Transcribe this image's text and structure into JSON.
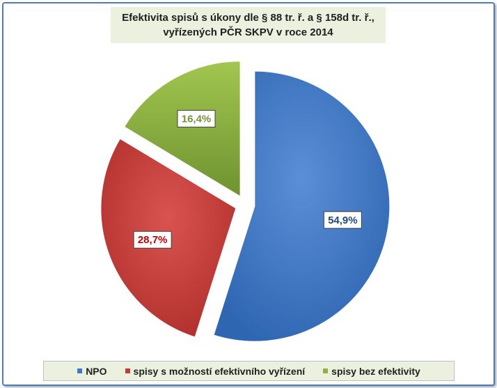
{
  "chart_data": {
    "type": "pie",
    "title": [
      "Efektivita spisů s úkony dle § 88 tr. ř. a § 158d tr. ř.,",
      "vyřízených PČR SKPV v roce 2014"
    ],
    "categories": [
      "NPO",
      "spisy s možností efektivního vyřízení",
      "spisy bez efektivity"
    ],
    "values": [
      54.9,
      28.7,
      16.4
    ],
    "labels": [
      "54,9%",
      "28,7%",
      "16,4%"
    ],
    "colors": [
      "#3f78c5",
      "#c33b38",
      "#8db240"
    ],
    "label_colors": [
      "#1f497d",
      "#c00000",
      "#76923c"
    ],
    "exploded": true,
    "legend": "bottom"
  }
}
